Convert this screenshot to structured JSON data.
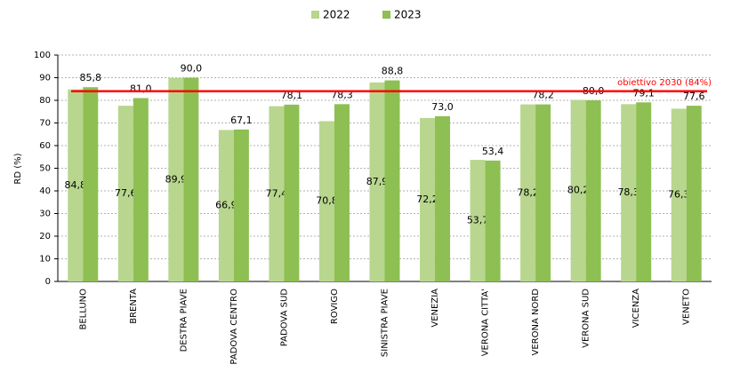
{
  "chart_data": {
    "type": "bar",
    "categories": [
      "BELLUNO",
      "BRENTA",
      "DESTRA PIAVE",
      "PADOVA CENTRO",
      "PADOVA SUD",
      "ROVIGO",
      "SINISTRA PIAVE",
      "VENEZIA",
      "VERONA CITTA'",
      "VERONA NORD",
      "VERONA SUD",
      "VICENZA",
      "VENETO"
    ],
    "series": [
      {
        "name": "2022",
        "color": "#b8d68e",
        "values": [
          84.8,
          77.6,
          89.9,
          66.9,
          77.4,
          70.8,
          87.9,
          72.2,
          53.7,
          78.2,
          80.2,
          78.3,
          76.3
        ],
        "value_labels": [
          "84,8",
          "77,6",
          "89,9",
          "66,9",
          "77,4",
          "70,8",
          "87,9",
          "72,2",
          "53,7",
          "78,2",
          "80,2",
          "78,3",
          "76,3"
        ]
      },
      {
        "name": "2023",
        "color": "#8dbf52",
        "values": [
          85.8,
          81.0,
          90.0,
          67.1,
          78.1,
          78.3,
          88.8,
          73.0,
          53.4,
          78.2,
          80.0,
          79.1,
          77.6
        ],
        "value_labels": [
          "85,8",
          "81,0",
          "90,0",
          "67,1",
          "78,1",
          "78,3",
          "88,8",
          "73,0",
          "53,4",
          "78,2",
          "80,0",
          "79,1",
          "77,6"
        ]
      }
    ],
    "y_label": "RD (%)",
    "ylim": [
      0,
      100
    ],
    "yticks": [
      0,
      10,
      20,
      30,
      40,
      50,
      60,
      70,
      80,
      90,
      100
    ],
    "grid": true,
    "target": {
      "value": 84,
      "label": "obiettivo 2030 (84%)",
      "color": "#ff0000"
    }
  }
}
